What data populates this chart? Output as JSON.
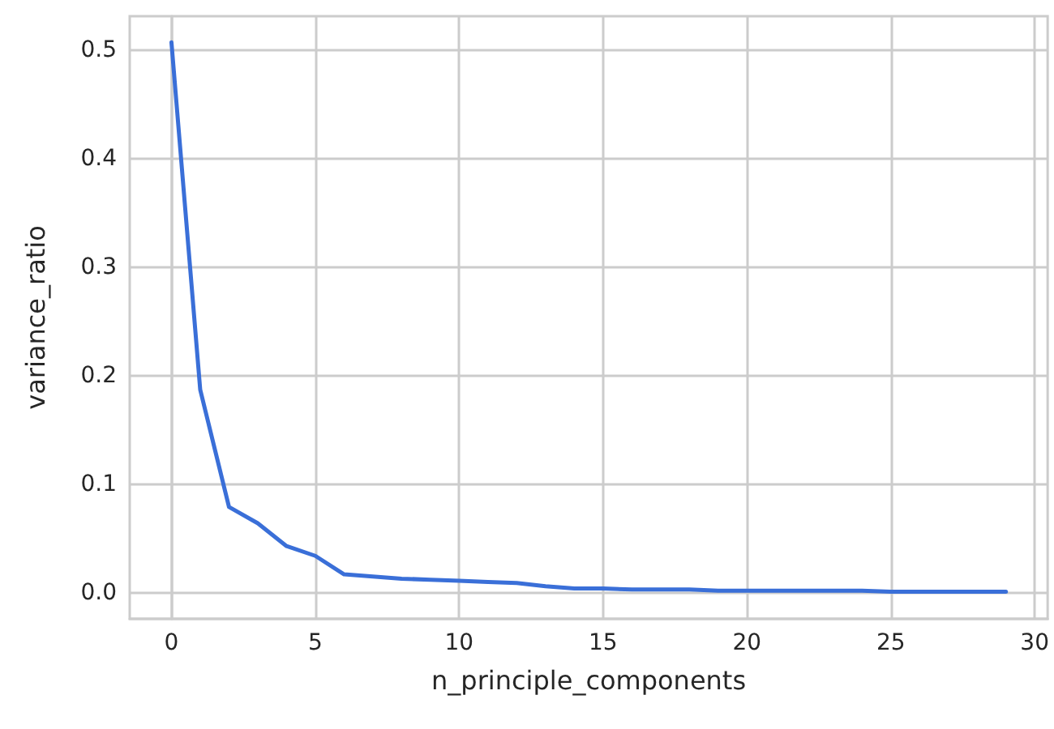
{
  "chart_data": {
    "type": "line",
    "xlabel": "n_principle_components",
    "ylabel": "variance_ratio",
    "x": [
      0,
      1,
      2,
      3,
      4,
      5,
      6,
      7,
      8,
      9,
      10,
      11,
      12,
      13,
      14,
      15,
      16,
      17,
      18,
      19,
      20,
      21,
      22,
      23,
      24,
      25,
      26,
      27,
      28,
      29
    ],
    "series": [
      {
        "color": "#3a6fd8",
        "values": [
          0.507,
          0.187,
          0.079,
          0.064,
          0.043,
          0.034,
          0.017,
          0.015,
          0.013,
          0.012,
          0.011,
          0.01,
          0.009,
          0.006,
          0.004,
          0.004,
          0.003,
          0.003,
          0.003,
          0.002,
          0.002,
          0.002,
          0.002,
          0.002,
          0.002,
          0.001,
          0.001,
          0.001,
          0.001,
          0.001
        ]
      }
    ],
    "xlim": [
      -1.45,
      30.45
    ],
    "xticks": [
      0,
      5,
      10,
      15,
      20,
      25,
      30
    ],
    "ylim": [
      -0.024,
      0.531
    ],
    "yticks": [
      {
        "value": 0,
        "label": "0.0"
      },
      0.1,
      0.2,
      0.3,
      0.4,
      0.5
    ],
    "grid": true,
    "marker": "none",
    "line_style": "solid"
  }
}
